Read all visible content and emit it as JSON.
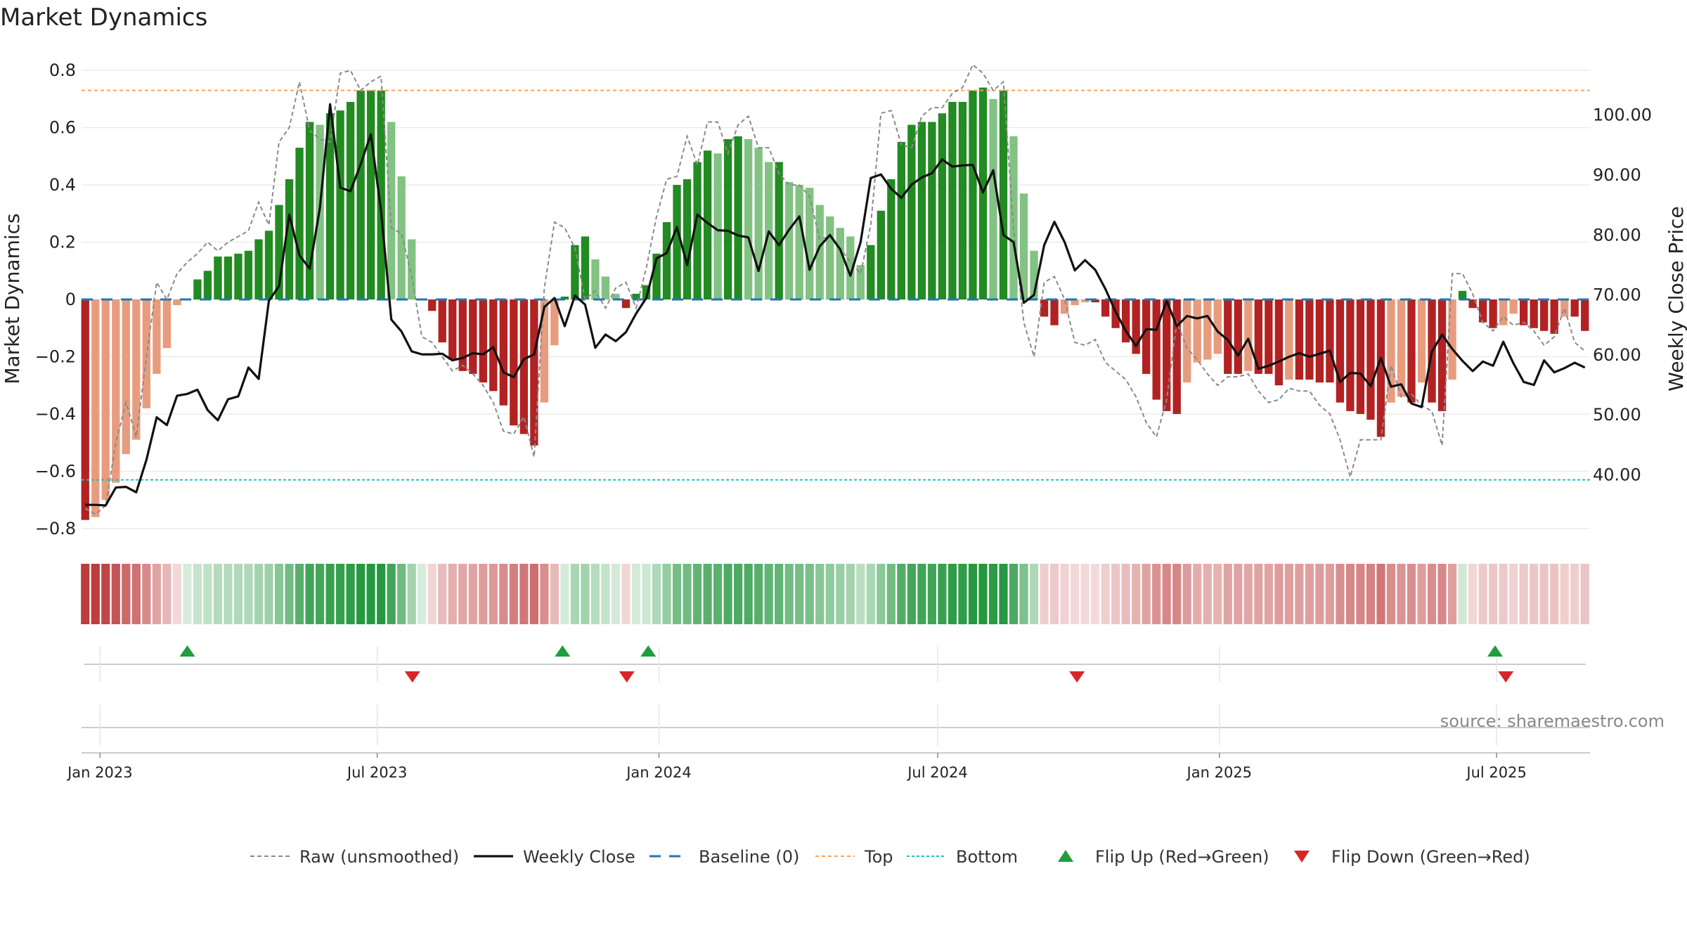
{
  "chart_data": {
    "type": "bar",
    "title": "Market Dynamics",
    "ylabel": "Market Dynamics",
    "ylabel_right": "Weekly Close Price",
    "ylim": [
      -0.82,
      0.82
    ],
    "ylim_right": [
      30.1,
      108.4
    ],
    "yticks": [
      -0.8,
      -0.6,
      -0.4,
      -0.2,
      0,
      0.2,
      0.4,
      0.6,
      0.8
    ],
    "yticks_right": [
      40,
      50,
      60,
      70,
      80,
      90,
      100
    ],
    "ytick_labels": [
      "−0.8",
      "−0.6",
      "−0.4",
      "−0.2",
      "0",
      "0.2",
      "0.4",
      "0.6",
      "0.8"
    ],
    "ytick_labels_right": [
      "40.00",
      "50.00",
      "60.00",
      "70.00",
      "80.00",
      "90.00",
      "100.00"
    ],
    "x_start": "2022-12-19",
    "x_end": "2025-08-31",
    "xticks": [
      "2023-01-01",
      "2023-07-01",
      "2024-01-01",
      "2024-07-01",
      "2025-01-01",
      "2025-07-01"
    ],
    "xtick_labels": [
      "Jan 2023",
      "Jul 2023",
      "Jan 2024",
      "Jul 2024",
      "Jan 2025",
      "Jul 2025"
    ],
    "grid": true,
    "legend_position": "bottom",
    "top_level": 0.73,
    "bottom_level": -0.63,
    "baseline": 0,
    "source": "source: sharemaestro.com",
    "bars": [
      -0.77,
      -0.76,
      -0.7,
      -0.64,
      -0.54,
      -0.49,
      -0.38,
      -0.26,
      -0.17,
      -0.02,
      0.0,
      0.07,
      0.1,
      0.15,
      0.15,
      0.16,
      0.17,
      0.21,
      0.24,
      0.33,
      0.42,
      0.53,
      0.62,
      0.61,
      0.65,
      0.66,
      0.69,
      0.73,
      0.73,
      0.73,
      0.62,
      0.43,
      0.21,
      0.0,
      -0.04,
      -0.15,
      -0.21,
      -0.25,
      -0.26,
      -0.29,
      -0.32,
      -0.37,
      -0.44,
      -0.47,
      -0.51,
      -0.36,
      -0.16,
      0.01,
      0.19,
      0.22,
      0.14,
      0.08,
      0.02,
      -0.03,
      0.02,
      0.05,
      0.16,
      0.27,
      0.4,
      0.42,
      0.48,
      0.52,
      0.51,
      0.56,
      0.57,
      0.56,
      0.53,
      0.48,
      0.48,
      0.41,
      0.4,
      0.39,
      0.33,
      0.29,
      0.25,
      0.22,
      0.12,
      0.19,
      0.31,
      0.42,
      0.55,
      0.61,
      0.62,
      0.62,
      0.65,
      0.69,
      0.69,
      0.73,
      0.74,
      0.7,
      0.73,
      0.57,
      0.37,
      0.17,
      -0.06,
      -0.09,
      -0.05,
      -0.02,
      -0.01,
      -0.01,
      -0.06,
      -0.1,
      -0.15,
      -0.19,
      -0.26,
      -0.35,
      -0.39,
      -0.4,
      -0.29,
      -0.22,
      -0.21,
      -0.19,
      -0.26,
      -0.26,
      -0.25,
      -0.26,
      -0.26,
      -0.3,
      -0.28,
      -0.28,
      -0.28,
      -0.29,
      -0.29,
      -0.36,
      -0.39,
      -0.4,
      -0.42,
      -0.48,
      -0.36,
      -0.34,
      -0.36,
      -0.29,
      -0.36,
      -0.39,
      -0.28,
      0.03,
      -0.03,
      -0.08,
      -0.1,
      -0.09,
      -0.05,
      -0.09,
      -0.1,
      -0.11,
      -0.12,
      -0.06,
      -0.06,
      -0.11
    ],
    "raw": [
      -0.73,
      -0.75,
      -0.72,
      -0.5,
      -0.36,
      -0.48,
      -0.2,
      0.06,
      0.0,
      0.09,
      0.13,
      0.16,
      0.2,
      0.17,
      0.2,
      0.22,
      0.24,
      0.34,
      0.26,
      0.55,
      0.6,
      0.76,
      0.59,
      0.56,
      0.55,
      0.79,
      0.8,
      0.73,
      0.76,
      0.78,
      0.25,
      0.23,
      0.08,
      -0.13,
      -0.15,
      -0.2,
      -0.25,
      -0.23,
      -0.26,
      -0.3,
      -0.36,
      -0.46,
      -0.47,
      -0.41,
      -0.55,
      0.04,
      0.27,
      0.25,
      0.18,
      0.0,
      0.03,
      -0.03,
      0.04,
      0.06,
      -0.03,
      0.11,
      0.29,
      0.42,
      0.43,
      0.57,
      0.47,
      0.62,
      0.62,
      0.51,
      0.61,
      0.64,
      0.53,
      0.53,
      0.44,
      0.4,
      0.4,
      0.36,
      0.21,
      0.22,
      0.18,
      0.13,
      0.09,
      0.26,
      0.65,
      0.66,
      0.54,
      0.53,
      0.64,
      0.67,
      0.67,
      0.72,
      0.74,
      0.82,
      0.79,
      0.73,
      0.76,
      0.24,
      -0.08,
      -0.2,
      0.06,
      0.08,
      0.0,
      -0.15,
      -0.16,
      -0.14,
      -0.22,
      -0.25,
      -0.28,
      -0.34,
      -0.43,
      -0.48,
      -0.35,
      -0.08,
      -0.17,
      -0.21,
      -0.26,
      -0.3,
      -0.27,
      -0.27,
      -0.26,
      -0.32,
      -0.36,
      -0.35,
      -0.31,
      -0.32,
      -0.32,
      -0.37,
      -0.4,
      -0.49,
      -0.62,
      -0.49,
      -0.49,
      -0.49,
      -0.23,
      -0.34,
      -0.33,
      -0.37,
      -0.39,
      -0.51,
      0.09,
      0.09,
      0.02,
      -0.08,
      -0.11,
      -0.06,
      -0.09,
      -0.08,
      -0.11,
      -0.16,
      -0.13,
      -0.03,
      -0.15,
      -0.18
    ],
    "close": [
      35.0,
      35.0,
      34.9,
      37.9,
      38.0,
      37.1,
      42.5,
      49.6,
      48.3,
      53.2,
      53.5,
      54.2,
      50.8,
      49.1,
      52.6,
      53.1,
      57.9,
      56.0,
      69.0,
      71.5,
      83.4,
      76.6,
      74.4,
      84.5,
      101.8,
      87.9,
      87.3,
      91.8,
      96.8,
      84.0,
      65.9,
      63.9,
      60.6,
      60.1,
      60.1,
      60.2,
      59.1,
      59.5,
      60.3,
      60.1,
      61.3,
      57.1,
      56.3,
      59.3,
      60.1,
      68.0,
      69.5,
      64.8,
      69.9,
      68.4,
      61.2,
      63.4,
      62.3,
      63.8,
      66.9,
      69.5,
      76.1,
      77.0,
      81.3,
      75.0,
      83.4,
      82.0,
      80.8,
      80.7,
      79.9,
      79.6,
      74.0,
      80.6,
      78.3,
      80.9,
      83.1,
      74.2,
      78.1,
      80.0,
      77.6,
      73.2,
      78.8,
      89.5,
      90.1,
      87.7,
      86.2,
      88.4,
      89.6,
      90.3,
      92.6,
      91.4,
      91.6,
      91.7,
      87.1,
      90.8,
      80.0,
      78.8,
      68.7,
      70.0,
      78.3,
      82.2,
      78.8,
      74.1,
      75.8,
      74.2,
      71.0,
      67.2,
      64.0,
      61.5,
      64.3,
      64.2,
      69.0,
      64.8,
      66.5,
      66.1,
      66.5,
      63.9,
      62.5,
      59.9,
      62.7,
      57.7,
      58.2,
      58.9,
      59.7,
      60.3,
      59.7,
      60.2,
      60.7,
      55.5,
      57.0,
      56.9,
      54.8,
      59.5,
      54.7,
      55.1,
      51.9,
      51.3,
      60.5,
      63.4,
      61.0,
      59.0,
      57.3,
      58.9,
      58.2,
      62.2,
      58.6,
      55.5,
      55.0,
      59.1,
      57.1,
      57.8,
      58.7,
      57.9
    ],
    "flip_up": [
      "2023-02-27",
      "2023-10-30",
      "2023-12-25",
      "2025-06-30"
    ],
    "flip_down": [
      "2023-07-24",
      "2023-12-11",
      "2024-09-30",
      "2025-07-07"
    ],
    "colors": {
      "bar_up_strong": "#228b22",
      "bar_up_weak": "#82c282",
      "bar_down_strong": "#b22222",
      "bar_down_weak": "#e89c7e",
      "raw_line": "#8a8a8a",
      "close_line": "#111111",
      "baseline": "#1f77b4",
      "top_line": "#f4a460",
      "bottom_line": "#20c0c0",
      "marker_up": "#1e9e3e",
      "marker_down": "#d62728"
    },
    "legend": [
      {
        "label": "Raw (unsmoothed)",
        "kind": "dash-grey"
      },
      {
        "label": "Weekly Close",
        "kind": "solid-black"
      },
      {
        "label": "Baseline (0)",
        "kind": "dash-blue"
      },
      {
        "label": "Top",
        "kind": "dot-orange"
      },
      {
        "label": "Bottom",
        "kind": "dot-cyan"
      },
      {
        "label": "Flip Up (Red→Green)",
        "kind": "tri-up"
      },
      {
        "label": "Flip Down (Green→Red)",
        "kind": "tri-down"
      }
    ]
  }
}
